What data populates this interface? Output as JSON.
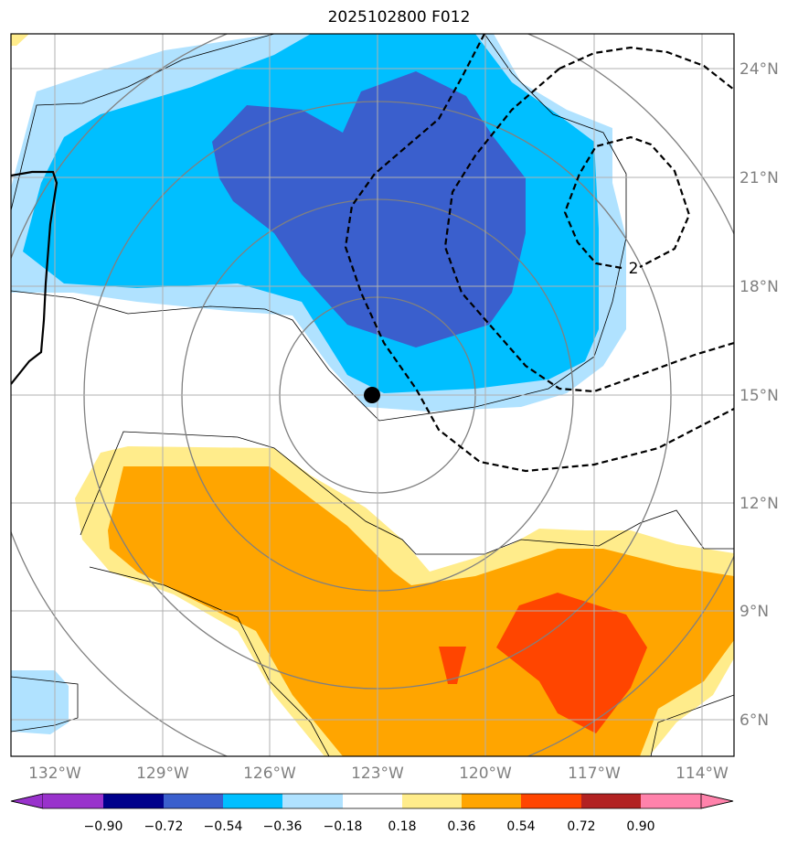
{
  "title": "2025102800 F012",
  "map": {
    "lon_labels": [
      "132°W",
      "129°W",
      "126°W",
      "123°W",
      "120°W",
      "117°W",
      "114°W"
    ],
    "lat_labels": [
      "24°N",
      "21°N",
      "18°N",
      "15°N",
      "12°N",
      "9°N",
      "6°N"
    ],
    "contour_label": "2",
    "center_marker": {
      "lon": -123.1,
      "lat": 15.0
    }
  },
  "colorbar": {
    "ticks": [
      "−0.90",
      "−0.72",
      "−0.54",
      "−0.36",
      "−0.18",
      "0.18",
      "0.36",
      "0.54",
      "0.72",
      "0.90"
    ],
    "colors": [
      "#9932cc",
      "#00008b",
      "#3a5fcd",
      "#00bfff",
      "#b0e2ff",
      "#ffffff",
      "#ffec8b",
      "#ffa500",
      "#ff4500",
      "#b22222",
      "#ff82ab"
    ]
  }
}
